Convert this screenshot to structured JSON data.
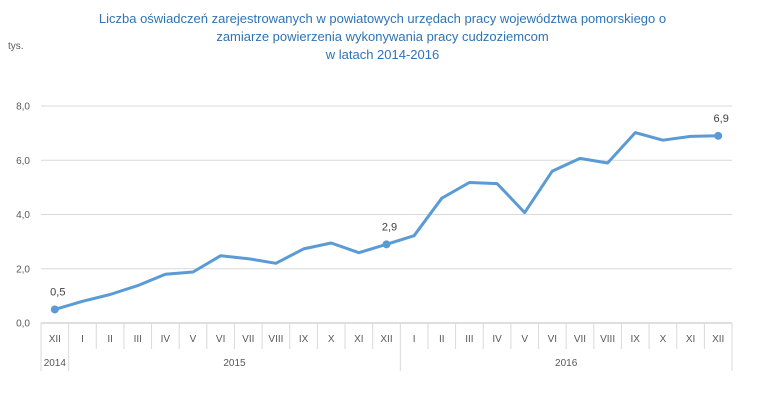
{
  "chart_data": {
    "type": "line",
    "title_lines": [
      "Liczba oświadczeń zarejestrowanych w powiatowych urzędach pracy województwa pomorskiego o",
      "zamiarze powierzenia wykonywania pracy cudzoziemcom",
      "w latach 2014-2016"
    ],
    "unit_label": "tys.",
    "ylim": [
      0,
      8
    ],
    "y_ticks": [
      "0,0",
      "2,0",
      "4,0",
      "6,0",
      "8,0"
    ],
    "y_tick_values": [
      0,
      2,
      4,
      6,
      8
    ],
    "grid": true,
    "legend": "none",
    "line_color": "#5b9bd5",
    "months": [
      "XII",
      "I",
      "II",
      "III",
      "IV",
      "V",
      "VI",
      "VII",
      "VIII",
      "IX",
      "X",
      "XI",
      "XII",
      "I",
      "II",
      "III",
      "IV",
      "V",
      "VI",
      "VII",
      "VIII",
      "IX",
      "X",
      "XI",
      "XII"
    ],
    "years": [
      {
        "label": "2014",
        "count": 1
      },
      {
        "label": "2015",
        "count": 12
      },
      {
        "label": "2016",
        "count": 12
      }
    ],
    "values": [
      0.5,
      0.8,
      1.05,
      1.38,
      1.8,
      1.88,
      2.48,
      2.37,
      2.2,
      2.73,
      2.95,
      2.59,
      2.9,
      3.22,
      4.6,
      5.18,
      5.14,
      4.07,
      5.6,
      6.07,
      5.9,
      7.02,
      6.74,
      6.88,
      6.9
    ],
    "data_labels": [
      {
        "index": 0,
        "text": "0,5"
      },
      {
        "index": 12,
        "text": "2,9"
      },
      {
        "index": 24,
        "text": "6,9"
      }
    ]
  }
}
